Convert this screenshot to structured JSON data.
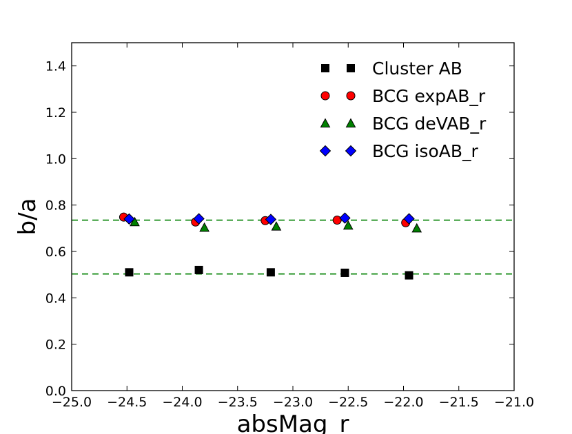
{
  "chart_data": {
    "type": "scatter",
    "xlabel": "absMag_r",
    "ylabel": "b/a",
    "xlim": [
      -25.0,
      -21.0
    ],
    "ylim": [
      0.0,
      1.5
    ],
    "xticks": [
      -25.0,
      -24.5,
      -24.0,
      -23.5,
      -23.0,
      -22.5,
      -22.0,
      -21.5,
      -21.0
    ],
    "xtick_labels": [
      "−25.0",
      "−24.5",
      "−24.0",
      "−23.5",
      "−23.0",
      "−22.5",
      "−22.0",
      "−21.5",
      "−21.0"
    ],
    "yticks": [
      0.0,
      0.2,
      0.4,
      0.6,
      0.8,
      1.0,
      1.2,
      1.4
    ],
    "ytick_labels": [
      "0.0",
      "0.2",
      "0.4",
      "0.6",
      "0.8",
      "1.0",
      "1.2",
      "1.4"
    ],
    "grid": false,
    "legend_position": "top-right",
    "series": [
      {
        "name": "Cluster AB",
        "marker": "square",
        "color": "#000000",
        "x": [
          -24.48,
          -23.85,
          -23.2,
          -22.53,
          -21.95
        ],
        "y": [
          0.51,
          0.52,
          0.51,
          0.508,
          0.497
        ]
      },
      {
        "name": "BCG expAB_r",
        "marker": "circle",
        "color": "#ff0000",
        "x": [
          -24.53,
          -23.88,
          -23.25,
          -22.6,
          -21.98
        ],
        "y": [
          0.748,
          0.727,
          0.733,
          0.735,
          0.724
        ]
      },
      {
        "name": "BCG deVAB_r",
        "marker": "triangle",
        "color": "#008000",
        "x": [
          -24.43,
          -23.8,
          -23.15,
          -22.5,
          -21.88
        ],
        "y": [
          0.727,
          0.703,
          0.708,
          0.712,
          0.7
        ]
      },
      {
        "name": "BCG isoAB_r",
        "marker": "diamond",
        "color": "#0000ff",
        "x": [
          -24.48,
          -23.85,
          -23.2,
          -22.53,
          -21.95
        ],
        "y": [
          0.74,
          0.741,
          0.738,
          0.744,
          0.741
        ]
      }
    ],
    "reference_lines": [
      {
        "orientation": "horizontal",
        "y": 0.735,
        "style": "dashed",
        "color": "#008000"
      },
      {
        "orientation": "horizontal",
        "y": 0.503,
        "style": "dashed",
        "color": "#008000"
      }
    ]
  }
}
